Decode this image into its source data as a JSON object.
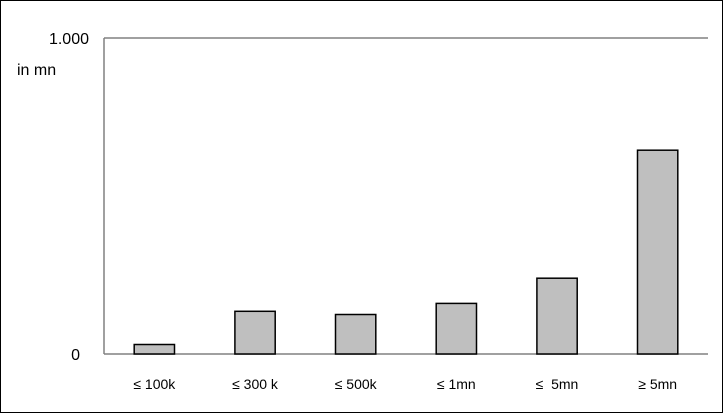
{
  "chart_data": {
    "type": "bar",
    "title": "",
    "xlabel": "",
    "ylabel": "",
    "unit_label": "in mn",
    "ylim": [
      0,
      1000
    ],
    "y_tick_labels": [
      "0",
      "1.000"
    ],
    "grid": "top line only",
    "legend": "none",
    "categories": [
      "≤ 100k",
      "≤ 300 k",
      "≤ 500k",
      "≤ 1mn",
      "≤  5mn",
      "≥ 5mn"
    ],
    "values": [
      30,
      135,
      125,
      160,
      240,
      645
    ],
    "colors": {
      "bar_fill": "#bfbfbf",
      "bar_stroke": "#000000",
      "axis": "#808080",
      "text": "#000000"
    }
  }
}
